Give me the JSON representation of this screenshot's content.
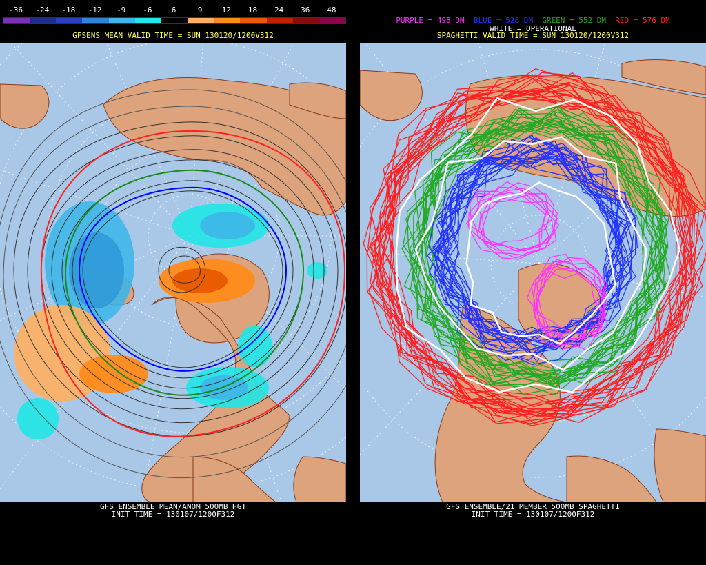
{
  "left_panel": {
    "scale_labels": [
      "-36",
      "-24",
      "-18",
      "-12",
      "-9",
      "-6",
      "6",
      "9",
      "12",
      "18",
      "24",
      "36",
      "48"
    ],
    "scale_colors": [
      "#7b2fb5",
      "#1a2f8c",
      "#2640c8",
      "#2f83d8",
      "#3fb6e8",
      "#20e6e6",
      "#000000",
      "#ffb060",
      "#ff8c1a",
      "#e85a00",
      "#c02000",
      "#8c0a0a",
      "#8c0050"
    ],
    "title": "GFSENS MEAN VALID TIME = SUN 130120/1200V312",
    "footer_line1": "GFS ENSEMBLE MEAN/ANOM 500MB HGT",
    "footer_line2": "INIT TIME = 130107/1200F312"
  },
  "right_panel": {
    "legend": [
      {
        "text": "PURPLE = 498 DM",
        "color": "#ff33ff"
      },
      {
        "text": "BLUE = 528 DM",
        "color": "#2233ff"
      },
      {
        "text": "GREEN = 552 DM",
        "color": "#22aa22"
      },
      {
        "text": "RED = 576 DM",
        "color": "#ff2020"
      }
    ],
    "operational_label": "WHITE = OPERATIONAL",
    "title": "SPAGHETTI VALID TIME = SUN 130120/1200V312",
    "footer_line1": "GFS ENSEMBLE/21 MEMBER 500MB SPAGHETTI",
    "footer_line2": "INIT TIME = 130107/1200F312"
  },
  "colors": {
    "ocean": "#a9c8e8",
    "land": "#dca37d",
    "coast": "#8a3a1a",
    "grid": "#e8f0ff"
  }
}
